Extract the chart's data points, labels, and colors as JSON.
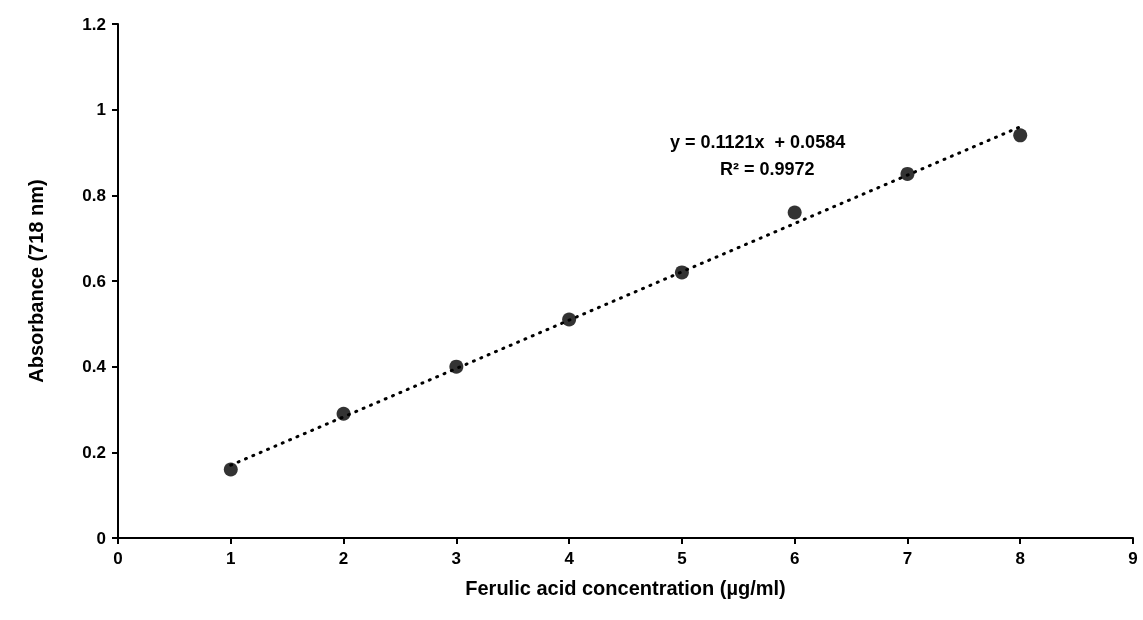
{
  "chart_data": {
    "type": "scatter",
    "xlabel": "Ferulic acid concentration (µg/ml)",
    "ylabel": "Absorbance (718 nm)",
    "x": [
      1,
      2,
      3,
      4,
      5,
      6,
      7,
      8
    ],
    "series": [
      {
        "color": "#000000",
        "marker": "circle",
        "values": [
          0.16,
          0.29,
          0.4,
          0.51,
          0.62,
          0.76,
          0.85,
          0.94
        ]
      },
      {
        "type": "line",
        "color": "#000000",
        "marker": "none",
        "line_style": "dotted",
        "x": [
          1,
          8
        ],
        "values": [
          0.17,
          0.96
        ]
      }
    ],
    "annotations": [
      "y = 0.1121x  + 0.0584",
      "R² = 0.9972"
    ],
    "xlim": [
      0,
      9
    ],
    "xticks": [
      0,
      1,
      2,
      3,
      4,
      5,
      6,
      7,
      8,
      9
    ],
    "ylim": [
      0,
      1.2
    ],
    "yticks": [
      0,
      0.2,
      0.4,
      0.6,
      0.8,
      1,
      1.2
    ],
    "grid": false
  }
}
